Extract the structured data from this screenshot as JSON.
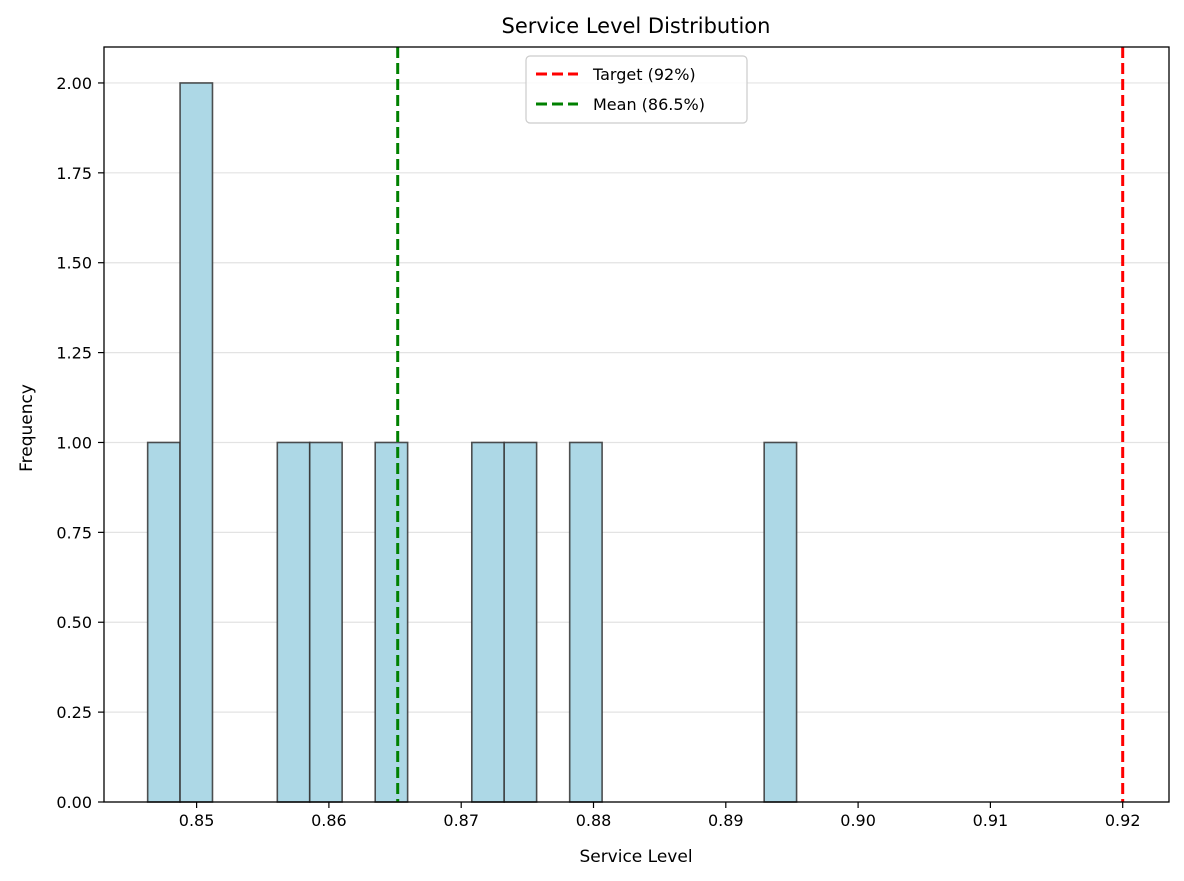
{
  "chart_data": {
    "type": "bar",
    "subtype": "histogram",
    "title": "Service Level Distribution",
    "xlabel": "Service Level",
    "ylabel": "Frequency",
    "xlim": [
      0.843,
      0.9235
    ],
    "ylim": [
      0,
      2.1
    ],
    "bin_width": 0.00245,
    "bins": [
      {
        "start": 0.8463,
        "end": 0.84875,
        "count": 1
      },
      {
        "start": 0.84875,
        "end": 0.8512,
        "count": 2
      },
      {
        "start": 0.8561,
        "end": 0.85855,
        "count": 1
      },
      {
        "start": 0.85855,
        "end": 0.861,
        "count": 1
      },
      {
        "start": 0.8635,
        "end": 0.86595,
        "count": 1
      },
      {
        "start": 0.8708,
        "end": 0.87325,
        "count": 1
      },
      {
        "start": 0.87325,
        "end": 0.8757,
        "count": 1
      },
      {
        "start": 0.8782,
        "end": 0.88065,
        "count": 1
      },
      {
        "start": 0.8929,
        "end": 0.89535,
        "count": 1
      }
    ],
    "x_ticks": [
      "0.85",
      "0.86",
      "0.87",
      "0.88",
      "0.89",
      "0.90",
      "0.91",
      "0.92"
    ],
    "x_tick_values": [
      0.85,
      0.86,
      0.87,
      0.88,
      0.89,
      0.9,
      0.91,
      0.92
    ],
    "y_ticks": [
      "0.00",
      "0.25",
      "0.50",
      "0.75",
      "1.00",
      "1.25",
      "1.50",
      "1.75",
      "2.00"
    ],
    "y_tick_values": [
      0,
      0.25,
      0.5,
      0.75,
      1.0,
      1.25,
      1.5,
      1.75,
      2.0
    ],
    "reference_lines": [
      {
        "label": "Target (92%)",
        "x": 0.92,
        "color": "#ff0000",
        "style": "dashed"
      },
      {
        "label": "Mean (86.5%)",
        "x": 0.8652,
        "color": "#008000",
        "style": "dashed"
      }
    ],
    "bar_color": "#add8e6",
    "bar_edge_color": "#333333",
    "grid": "horizontal",
    "legend_position": "top-center"
  }
}
